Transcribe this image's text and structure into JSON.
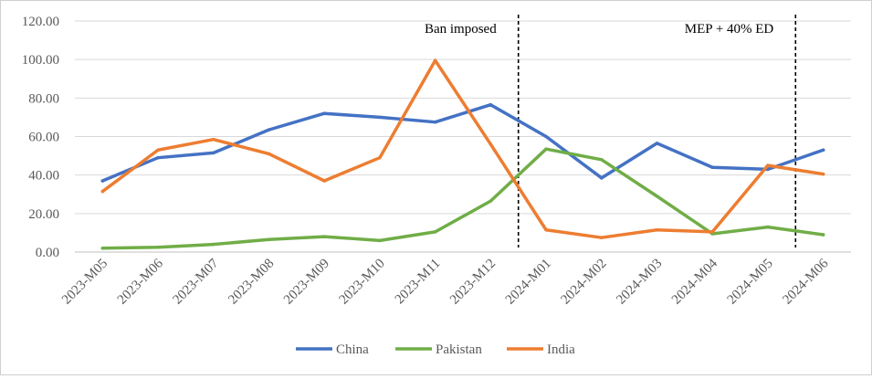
{
  "chart_data": {
    "type": "line",
    "categories": [
      "2023-M05",
      "2023-M06",
      "2023-M07",
      "2023-M08",
      "2023-M09",
      "2023-M10",
      "2023-M11",
      "2023-M12",
      "2024-M01",
      "2024-M02",
      "2024-M03",
      "2024-M04",
      "2024-M05",
      "2024-M06"
    ],
    "ylim": [
      0,
      120
    ],
    "yticks": [
      "0.00",
      "20.00",
      "40.00",
      "60.00",
      "80.00",
      "100.00",
      "120.00"
    ],
    "grid": true,
    "legend_position": "bottom",
    "series": [
      {
        "name": "China",
        "color": "#4472C4",
        "values": [
          37,
          49,
          51.5,
          63.5,
          72,
          70,
          67.5,
          76.5,
          60,
          38.5,
          56.5,
          44,
          43,
          53
        ]
      },
      {
        "name": "Pakistan",
        "color": "#70AD47",
        "values": [
          2,
          2.5,
          4,
          6.5,
          8,
          6,
          10.5,
          26.5,
          53.5,
          48,
          29,
          9.5,
          13,
          9
        ]
      },
      {
        "name": "India",
        "color": "#ED7D31",
        "values": [
          31.5,
          53,
          58.5,
          51,
          37,
          49,
          99.5,
          56,
          11.5,
          7.5,
          11.5,
          10.5,
          45,
          40.5
        ]
      }
    ],
    "annotations": [
      {
        "text": "Ban imposed",
        "after_category_index": 7
      },
      {
        "text": "MEP + 40% ED",
        "after_category_index": 12
      }
    ]
  }
}
